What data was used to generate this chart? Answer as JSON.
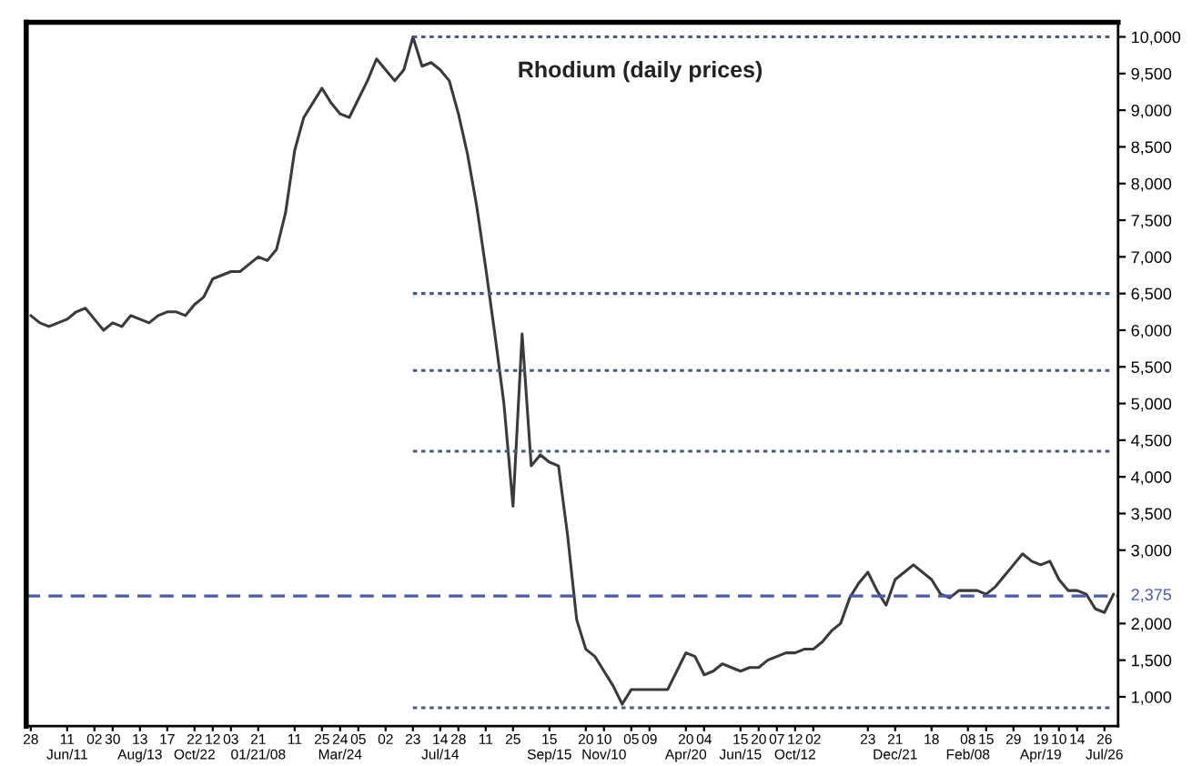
{
  "chart_data": {
    "type": "line",
    "title": "Rhodium (daily prices)",
    "categories": [
      "28",
      null,
      null,
      null,
      "11\nJun/11",
      null,
      null,
      "02",
      null,
      "30",
      null,
      null,
      "13\nAug/13",
      null,
      null,
      "17",
      null,
      null,
      "22\nOct/22",
      null,
      "12",
      null,
      "03",
      null,
      null,
      "21\n01/21/08",
      null,
      null,
      null,
      "11",
      null,
      null,
      "25",
      null,
      "24\nMar/24",
      null,
      "05",
      null,
      null,
      "02",
      null,
      null,
      "23",
      null,
      null,
      "14\nJul/14",
      null,
      "28",
      null,
      null,
      "11",
      null,
      null,
      "25",
      null,
      null,
      null,
      "15\nSep/15",
      null,
      null,
      null,
      "20",
      null,
      "10\nNov/10",
      null,
      null,
      "05",
      null,
      "09",
      null,
      null,
      null,
      "20\nApr/20",
      null,
      "04",
      null,
      null,
      null,
      "15\nJun/15",
      null,
      "20",
      null,
      "07",
      null,
      "12\nOct/12",
      null,
      "02",
      null,
      null,
      null,
      null,
      null,
      "23",
      null,
      null,
      "21\nDec/21",
      null,
      null,
      null,
      "18",
      null,
      null,
      null,
      "08\nFeb/08",
      null,
      "15",
      null,
      null,
      "29",
      null,
      null,
      "19\nApr/19",
      null,
      "10",
      null,
      "14",
      null,
      null,
      "26\nJul/26",
      null
    ],
    "ylim": [
      600,
      10200
    ],
    "yticks": [
      {
        "value": 1000,
        "label": "1,000"
      },
      {
        "value": 1500,
        "label": "1,500"
      },
      {
        "value": 2000,
        "label": "2,000"
      },
      {
        "value": 3000,
        "label": "3,000"
      },
      {
        "value": 3500,
        "label": "3,500"
      },
      {
        "value": 4000,
        "label": "4,000"
      },
      {
        "value": 4500,
        "label": "4,500"
      },
      {
        "value": 5000,
        "label": "5,000"
      },
      {
        "value": 5500,
        "label": "5,500"
      },
      {
        "value": 6000,
        "label": "6,000"
      },
      {
        "value": 6500,
        "label": "6,500"
      },
      {
        "value": 7000,
        "label": "7,000"
      },
      {
        "value": 7500,
        "label": "7,500"
      },
      {
        "value": 8000,
        "label": "8,000"
      },
      {
        "value": 8500,
        "label": "8,500"
      },
      {
        "value": 9000,
        "label": "9,000"
      },
      {
        "value": 9500,
        "label": "9,500"
      },
      {
        "value": 10000,
        "label": "10,000"
      }
    ],
    "grid": false,
    "ref_lines": [
      {
        "axis": "y",
        "value": 2375,
        "label": "2,375",
        "color": "#4a5aa8",
        "line_style": "dashed"
      }
    ],
    "series": [
      {
        "color": "#3a3a3a",
        "line_style": "solid",
        "values": [
          6200,
          6100,
          6050,
          6100,
          6150,
          6250,
          6300,
          6150,
          6000,
          6100,
          6050,
          6200,
          6150,
          6100,
          6200,
          6250,
          6250,
          6200,
          6350,
          6450,
          6700,
          6750,
          6800,
          6800,
          6900,
          7000,
          6950,
          7100,
          7600,
          8450,
          8900,
          9100,
          9300,
          9100,
          8950,
          8900,
          9150,
          9400,
          9700,
          9550,
          9400,
          9550,
          10000,
          9600,
          9650,
          9550,
          9400,
          8950,
          8400,
          7700,
          6850,
          5950,
          5000,
          3600,
          5950,
          4150,
          4300,
          4200,
          4150,
          3200,
          2050,
          1650,
          1550,
          1350,
          1150,
          900,
          1100,
          1100,
          1100,
          1100,
          1100,
          1350,
          1600,
          1550,
          1300,
          1350,
          1450,
          1400,
          1350,
          1400,
          1400,
          1500,
          1550,
          1600,
          1600,
          1650,
          1650,
          1750,
          1900,
          2000,
          2350,
          2550,
          2700,
          2450,
          2250,
          2600,
          2700,
          2800,
          2700,
          2600,
          2400,
          2350,
          2450,
          2450,
          2450,
          2400,
          2500,
          2650,
          2800,
          2950,
          2850,
          2800,
          2850,
          2600,
          2450,
          2450,
          2400,
          2200,
          2150,
          2400
        ]
      },
      {
        "type": "line",
        "color": "#4a5a7a",
        "line_style": "dotted",
        "values": [
          null,
          null,
          null,
          null,
          null,
          null,
          null,
          null,
          null,
          null,
          null,
          null,
          null,
          null,
          null,
          null,
          null,
          null,
          null,
          null,
          null,
          null,
          null,
          null,
          null,
          null,
          null,
          null,
          null,
          null,
          null,
          null,
          null,
          null,
          null,
          null,
          null,
          null,
          null,
          null,
          null,
          null,
          10000,
          10000,
          10000,
          10000,
          10000,
          10000,
          10000,
          10000,
          10000,
          10000,
          10000,
          10000,
          10000,
          10000,
          10000,
          10000,
          10000,
          10000,
          10000,
          10000,
          10000,
          10000,
          10000,
          10000,
          10000,
          10000,
          10000,
          10000,
          10000,
          10000,
          10000,
          10000,
          10000,
          10000,
          10000,
          10000,
          10000,
          10000,
          10000,
          10000,
          10000,
          10000,
          10000,
          10000,
          10000,
          10000,
          10000,
          10000,
          10000,
          10000,
          10000,
          10000,
          10000,
          10000,
          10000,
          10000,
          10000,
          10000,
          10000,
          10000,
          10000,
          10000,
          10000,
          10000,
          10000,
          10000,
          10000,
          10000,
          10000,
          10000,
          10000,
          10000,
          10000,
          10000,
          10000,
          10000,
          10000,
          10000
        ]
      },
      {
        "type": "line",
        "color": "#4a5a7a",
        "line_style": "dotted",
        "values": [
          null,
          null,
          null,
          null,
          null,
          null,
          null,
          null,
          null,
          null,
          null,
          null,
          null,
          null,
          null,
          null,
          null,
          null,
          null,
          null,
          null,
          null,
          null,
          null,
          null,
          null,
          null,
          null,
          null,
          null,
          null,
          null,
          null,
          null,
          null,
          null,
          null,
          null,
          null,
          null,
          null,
          null,
          6500,
          6500,
          6500,
          6500,
          6500,
          6500,
          6500,
          6500,
          6500,
          6500,
          6500,
          6500,
          6500,
          6500,
          6500,
          6500,
          6500,
          6500,
          6500,
          6500,
          6500,
          6500,
          6500,
          6500,
          6500,
          6500,
          6500,
          6500,
          6500,
          6500,
          6500,
          6500,
          6500,
          6500,
          6500,
          6500,
          6500,
          6500,
          6500,
          6500,
          6500,
          6500,
          6500,
          6500,
          6500,
          6500,
          6500,
          6500,
          6500,
          6500,
          6500,
          6500,
          6500,
          6500,
          6500,
          6500,
          6500,
          6500,
          6500,
          6500,
          6500,
          6500,
          6500,
          6500,
          6500,
          6500,
          6500,
          6500,
          6500,
          6500,
          6500,
          6500,
          6500,
          6500,
          6500,
          6500,
          6500,
          6500
        ]
      },
      {
        "type": "line",
        "color": "#4a5a7a",
        "line_style": "dotted",
        "values": [
          null,
          null,
          null,
          null,
          null,
          null,
          null,
          null,
          null,
          null,
          null,
          null,
          null,
          null,
          null,
          null,
          null,
          null,
          null,
          null,
          null,
          null,
          null,
          null,
          null,
          null,
          null,
          null,
          null,
          null,
          null,
          null,
          null,
          null,
          null,
          null,
          null,
          null,
          null,
          null,
          null,
          null,
          5450,
          5450,
          5450,
          5450,
          5450,
          5450,
          5450,
          5450,
          5450,
          5450,
          5450,
          5450,
          5450,
          5450,
          5450,
          5450,
          5450,
          5450,
          5450,
          5450,
          5450,
          5450,
          5450,
          5450,
          5450,
          5450,
          5450,
          5450,
          5450,
          5450,
          5450,
          5450,
          5450,
          5450,
          5450,
          5450,
          5450,
          5450,
          5450,
          5450,
          5450,
          5450,
          5450,
          5450,
          5450,
          5450,
          5450,
          5450,
          5450,
          5450,
          5450,
          5450,
          5450,
          5450,
          5450,
          5450,
          5450,
          5450,
          5450,
          5450,
          5450,
          5450,
          5450,
          5450,
          5450,
          5450,
          5450,
          5450,
          5450,
          5450,
          5450,
          5450,
          5450,
          5450,
          5450,
          5450,
          5450,
          5450
        ]
      },
      {
        "type": "line",
        "color": "#4a5a7a",
        "line_style": "dotted",
        "values": [
          null,
          null,
          null,
          null,
          null,
          null,
          null,
          null,
          null,
          null,
          null,
          null,
          null,
          null,
          null,
          null,
          null,
          null,
          null,
          null,
          null,
          null,
          null,
          null,
          null,
          null,
          null,
          null,
          null,
          null,
          null,
          null,
          null,
          null,
          null,
          null,
          null,
          null,
          null,
          null,
          null,
          null,
          4350,
          4350,
          4350,
          4350,
          4350,
          4350,
          4350,
          4350,
          4350,
          4350,
          4350,
          4350,
          4350,
          4350,
          4350,
          4350,
          4350,
          4350,
          4350,
          4350,
          4350,
          4350,
          4350,
          4350,
          4350,
          4350,
          4350,
          4350,
          4350,
          4350,
          4350,
          4350,
          4350,
          4350,
          4350,
          4350,
          4350,
          4350,
          4350,
          4350,
          4350,
          4350,
          4350,
          4350,
          4350,
          4350,
          4350,
          4350,
          4350,
          4350,
          4350,
          4350,
          4350,
          4350,
          4350,
          4350,
          4350,
          4350,
          4350,
          4350,
          4350,
          4350,
          4350,
          4350,
          4350,
          4350,
          4350,
          4350,
          4350,
          4350,
          4350,
          4350,
          4350,
          4350,
          4350,
          4350,
          4350,
          4350
        ]
      },
      {
        "type": "line",
        "color": "#4a5a7a",
        "line_style": "dotted",
        "values": [
          null,
          null,
          null,
          null,
          null,
          null,
          null,
          null,
          null,
          null,
          null,
          null,
          null,
          null,
          null,
          null,
          null,
          null,
          null,
          null,
          null,
          null,
          null,
          null,
          null,
          null,
          null,
          null,
          null,
          null,
          null,
          null,
          null,
          null,
          null,
          null,
          null,
          null,
          null,
          null,
          null,
          null,
          850,
          850,
          850,
          850,
          850,
          850,
          850,
          850,
          850,
          850,
          850,
          850,
          850,
          850,
          850,
          850,
          850,
          850,
          850,
          850,
          850,
          850,
          850,
          850,
          850,
          850,
          850,
          850,
          850,
          850,
          850,
          850,
          850,
          850,
          850,
          850,
          850,
          850,
          850,
          850,
          850,
          850,
          850,
          850,
          850,
          850,
          850,
          850,
          850,
          850,
          850,
          850,
          850,
          850,
          850,
          850,
          850,
          850,
          850,
          850,
          850,
          850,
          850,
          850,
          850,
          850,
          850,
          850,
          850,
          850,
          850,
          850,
          850,
          850,
          850,
          850,
          850,
          850
        ]
      }
    ]
  }
}
